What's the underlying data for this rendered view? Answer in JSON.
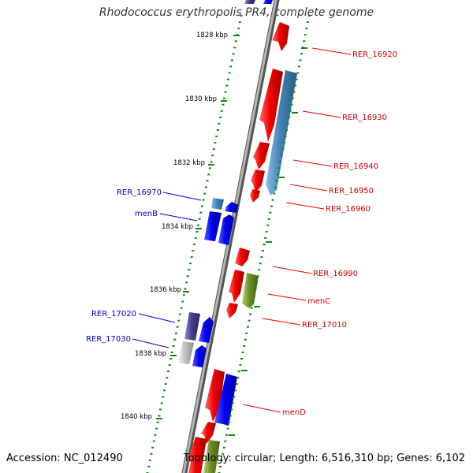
{
  "title": "Rhodococcus erythropolis PR4, complete genome",
  "footer": {
    "accession": "Accession: NC_012490",
    "topology": "Topology: circular; Length: 6,516,310 bp; Genes: 6,102"
  },
  "colors": {
    "forward_strand": "#ee0000",
    "reverse_strand": "#0000ee",
    "ruler_tick": "#118811",
    "label_red": "#cc0000",
    "label_blue": "#0000bb",
    "backbone": "#888888"
  },
  "ruler_labels": [
    "1828 kbp",
    "1830 kbp",
    "1832 kbp",
    "1834 kbp",
    "1836 kbp",
    "1838 kbp",
    "1840 kbp"
  ],
  "genes": [
    {
      "label": "RER_16920",
      "strand": "outer",
      "color": "red"
    },
    {
      "label": "RER_16930",
      "strand": "outer",
      "color": "red"
    },
    {
      "label": "RER_16940",
      "strand": "outer",
      "color": "red"
    },
    {
      "label": "RER_16950",
      "strand": "outer",
      "color": "red"
    },
    {
      "label": "RER_16960",
      "strand": "outer",
      "color": "red"
    },
    {
      "label": "RER_16970",
      "strand": "inner",
      "color": "blue"
    },
    {
      "label": "menB",
      "strand": "inner",
      "color": "blue"
    },
    {
      "label": "RER_16990",
      "strand": "outer",
      "color": "red"
    },
    {
      "label": "menC",
      "strand": "outer",
      "color": "red"
    },
    {
      "label": "RER_17010",
      "strand": "outer",
      "color": "red"
    },
    {
      "label": "RER_17020",
      "strand": "inner",
      "color": "blue"
    },
    {
      "label": "RER_17030",
      "strand": "inner",
      "color": "blue"
    },
    {
      "label": "menD",
      "strand": "outer",
      "color": "red"
    }
  ]
}
